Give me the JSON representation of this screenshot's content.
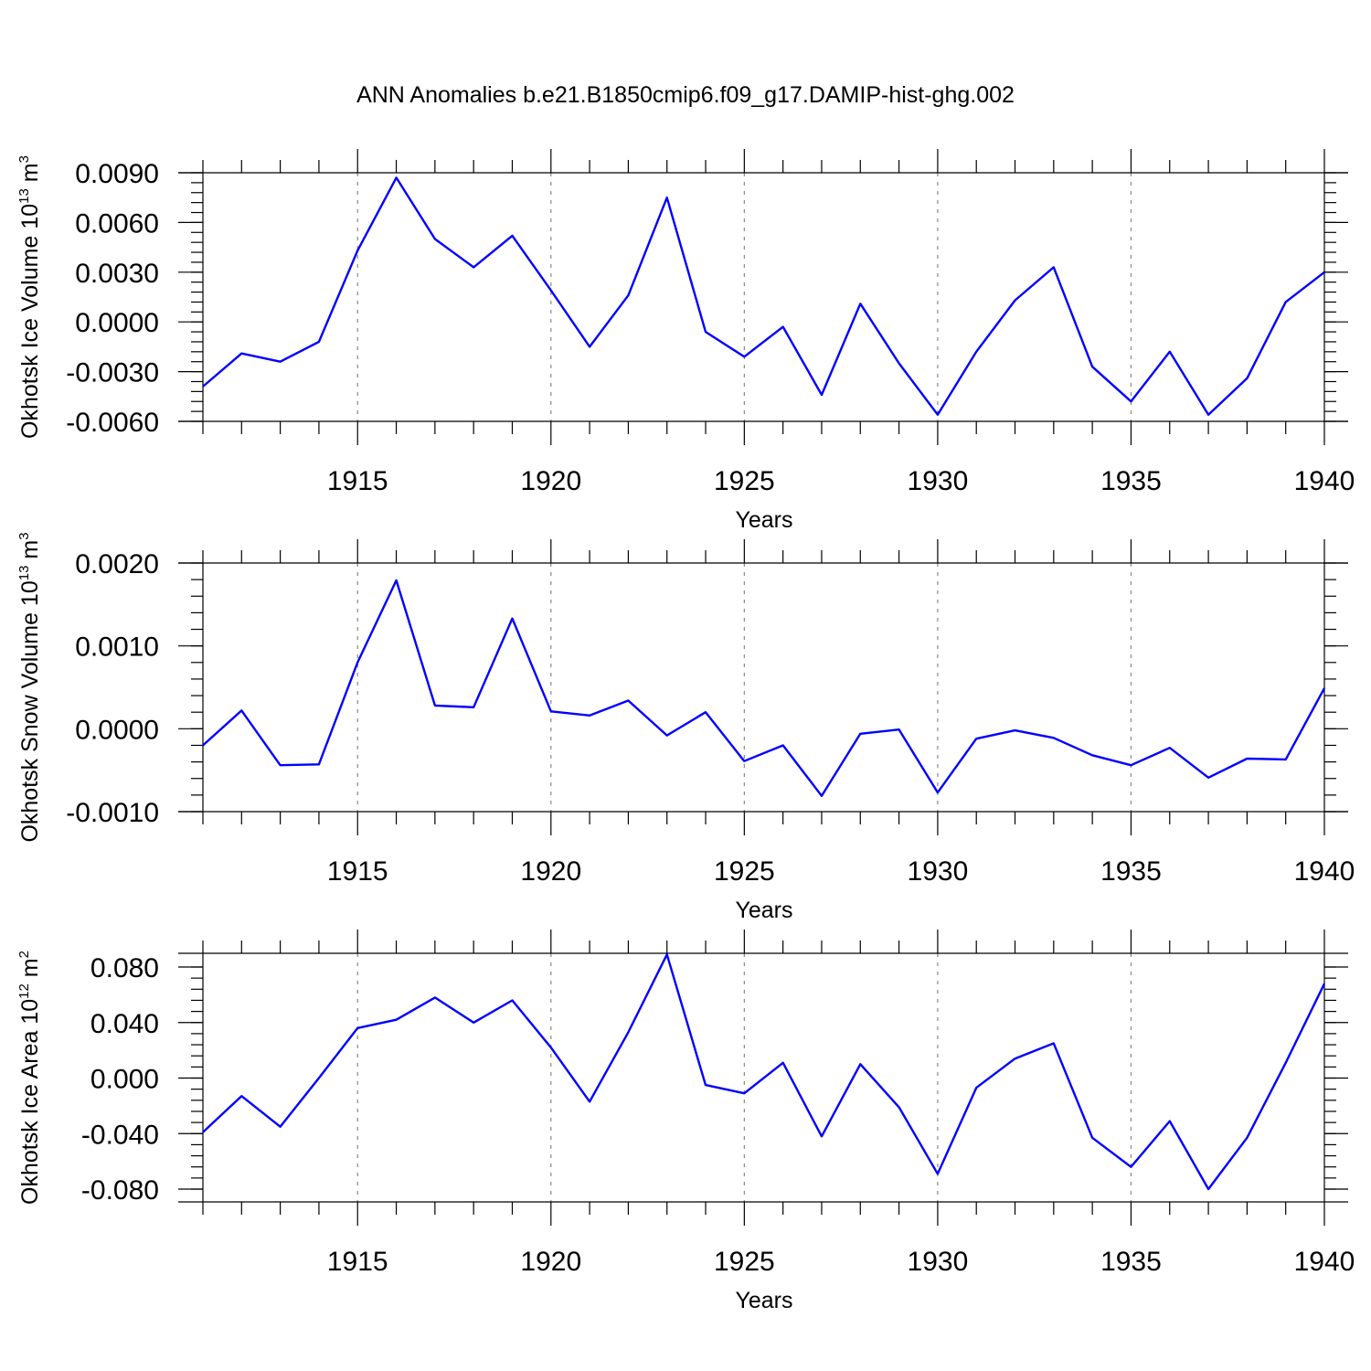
{
  "title": "ANN Anomalies b.e21.B1850cmip6.f09_g17.DAMIP-hist-ghg.002",
  "chart_data": [
    {
      "type": "line",
      "xlabel": "Years",
      "ylabel": "Okhotsk Ice Volume 10",
      "ylabel_exp": "13",
      "ylabel_unit": " m",
      "ylabel_unit_exp": "3",
      "xlim": [
        1911,
        1940
      ],
      "ylim": [
        -0.006,
        0.009
      ],
      "xticks": [
        "1915",
        "1920",
        "1925",
        "1930",
        "1935",
        "1940"
      ],
      "yticks": [
        "0.0090",
        "0.0060",
        "0.0030",
        "0.0000",
        "-0.0030",
        "-0.0060"
      ],
      "grid": "dashed vertical lines at major x ticks",
      "series": [
        {
          "color": "#0000ff",
          "x": [
            1911,
            1912,
            1913,
            1914,
            1915,
            1916,
            1917,
            1918,
            1919,
            1920,
            1921,
            1922,
            1923,
            1924,
            1925,
            1926,
            1927,
            1928,
            1929,
            1930,
            1931,
            1932,
            1933,
            1934,
            1935,
            1936,
            1937,
            1938,
            1939,
            1940
          ],
          "y": [
            -0.0039,
            -0.0019,
            -0.0024,
            -0.0012,
            0.0043,
            0.0087,
            0.005,
            0.0033,
            0.0052,
            0.0019,
            -0.0015,
            0.0016,
            0.0075,
            -0.0006,
            -0.0021,
            -0.0003,
            -0.0044,
            0.0011,
            -0.0025,
            -0.0056,
            -0.0018,
            0.0013,
            0.0033,
            -0.0027,
            -0.0048,
            -0.0018,
            -0.0056,
            -0.0034,
            0.0012,
            0.003
          ]
        }
      ]
    },
    {
      "type": "line",
      "xlabel": "Years",
      "ylabel": "Okhotsk Snow Volume 10",
      "ylabel_exp": "13",
      "ylabel_unit": " m",
      "ylabel_unit_exp": "3",
      "xlim": [
        1911,
        1940
      ],
      "ylim": [
        -0.001,
        0.002
      ],
      "xticks": [
        "1915",
        "1920",
        "1925",
        "1930",
        "1935",
        "1940"
      ],
      "yticks": [
        "0.0020",
        "0.0010",
        "0.0000",
        "-0.0010"
      ],
      "grid": "dashed vertical lines at major x ticks",
      "series": [
        {
          "color": "#0000ff",
          "x": [
            1911,
            1912,
            1913,
            1914,
            1915,
            1916,
            1917,
            1918,
            1919,
            1920,
            1921,
            1922,
            1923,
            1924,
            1925,
            1926,
            1927,
            1928,
            1929,
            1930,
            1931,
            1932,
            1933,
            1934,
            1935,
            1936,
            1937,
            1938,
            1939,
            1940
          ],
          "y": [
            -0.0002,
            0.00022,
            -0.00044,
            -0.00043,
            0.0008,
            0.00179,
            0.00028,
            0.00026,
            0.00133,
            0.00021,
            0.00016,
            0.00034,
            -8e-05,
            0.0002,
            -0.00039,
            -0.0002,
            -0.00081,
            -6e-05,
            -1e-05,
            -0.00077,
            -0.00012,
            -2e-05,
            -0.00011,
            -0.00032,
            -0.00044,
            -0.00023,
            -0.00059,
            -0.00036,
            -0.00037,
            0.00049
          ]
        }
      ]
    },
    {
      "type": "line",
      "xlabel": "Years",
      "ylabel": "Okhotsk Ice Area 10",
      "ylabel_exp": "12",
      "ylabel_unit": " m",
      "ylabel_unit_exp": "2",
      "xlim": [
        1911,
        1940
      ],
      "ylim": [
        -0.09,
        0.09
      ],
      "xticks": [
        "1915",
        "1920",
        "1925",
        "1930",
        "1935",
        "1940"
      ],
      "yticks": [
        "0.080",
        "0.040",
        "0.000",
        "-0.040",
        "-0.080"
      ],
      "grid": "dashed vertical lines at major x ticks",
      "series": [
        {
          "color": "#0000ff",
          "x": [
            1911,
            1912,
            1913,
            1914,
            1915,
            1916,
            1917,
            1918,
            1919,
            1920,
            1921,
            1922,
            1923,
            1924,
            1925,
            1926,
            1927,
            1928,
            1929,
            1930,
            1931,
            1932,
            1933,
            1934,
            1935,
            1936,
            1937,
            1938,
            1939,
            1940
          ],
          "y": [
            -0.039,
            -0.013,
            -0.035,
            0.0,
            0.036,
            0.042,
            0.058,
            0.04,
            0.056,
            0.022,
            -0.017,
            0.033,
            0.089,
            -0.005,
            -0.011,
            0.011,
            -0.042,
            0.01,
            -0.021,
            -0.069,
            -0.007,
            0.014,
            0.025,
            -0.043,
            -0.064,
            -0.031,
            -0.08,
            -0.043,
            0.011,
            0.068
          ]
        }
      ]
    }
  ]
}
